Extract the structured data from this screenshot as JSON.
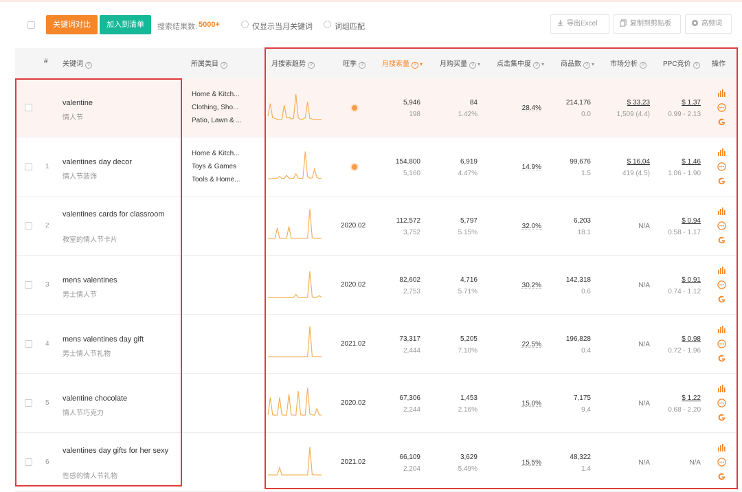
{
  "toolbar": {
    "compare_label": "关键词对比",
    "add_list_label": "加入到清单",
    "result_label": "搜索结果数:",
    "result_count": "5000+",
    "radio_month_label": "仅显示当月关键词",
    "radio_phrase_label": "词组匹配",
    "export_label": "导出Excel",
    "copy_label": "复制到剪贴板",
    "rootword_label": "高频词"
  },
  "headers": {
    "index": "#",
    "keyword": "关键词",
    "category": "所属类目",
    "trend": "月搜索趋势",
    "season": "旺季",
    "monthly_search": "月搜索量",
    "monthly_buy": "月购买量",
    "click_concentration": "点击集中度",
    "goods_count": "商品数",
    "market_analysis": "市场分析",
    "ppc": "PPC竞价",
    "ops": "操作"
  },
  "rows": [
    {
      "index": "",
      "keyword": "valentine",
      "keyword_cn": "情人节",
      "categories": [
        "Home & Kitch...",
        "Clothing, Sho...",
        "Patio, Lawn & ..."
      ],
      "season": "",
      "season_dot": true,
      "search": "5,946",
      "search_sub": "198",
      "buy": "84",
      "buy_sub": "1.42%",
      "click": "28.4%",
      "goods": "214,176",
      "goods_sub": "0.0",
      "market": "$ 33.23",
      "market_sub": "1,509 (4.4)",
      "ppc": "$ 1.37",
      "ppc_sub": "0.99 - 2.13",
      "trend": [
        0.15,
        0.55,
        0.1,
        0.08,
        0.05,
        0.04,
        0.05,
        0.5,
        0.1,
        0.12,
        0.06,
        0.08,
        0.85,
        0.1,
        0.05,
        0.06,
        0.1,
        0.6,
        0.08,
        0.06,
        0.05,
        0.05,
        0.05,
        0.05
      ]
    },
    {
      "index": "1",
      "keyword": "valentines day decor",
      "keyword_cn": "情人节装饰",
      "categories": [
        "Home & Kitch...",
        "Toys & Games",
        "Tools & Home..."
      ],
      "season": "",
      "season_dot": true,
      "search": "154,800",
      "search_sub": "5,160",
      "buy": "6,919",
      "buy_sub": "4.47%",
      "click": "14.9%",
      "goods": "99,676",
      "goods_sub": "1.5",
      "market": "$ 16.04",
      "market_sub": "419 (4.5)",
      "ppc": "$ 1.46",
      "ppc_sub": "1.06 - 1.90",
      "trend": [
        0.04,
        0.04,
        0.05,
        0.05,
        0.06,
        0.12,
        0.05,
        0.05,
        0.15,
        0.06,
        0.05,
        0.05,
        0.2,
        0.06,
        0.05,
        0.05,
        0.9,
        0.1,
        0.06,
        0.06,
        0.35,
        0.08,
        0.05,
        0.05
      ]
    },
    {
      "index": "2",
      "keyword": "valentines cards for classroom",
      "keyword_cn": "教室的情人节卡片",
      "two_line": true,
      "categories": [],
      "season": "2020.02",
      "season_dot": false,
      "search": "112,572",
      "search_sub": "3,752",
      "buy": "5,797",
      "buy_sub": "5.15%",
      "click": "32.0%",
      "goods": "6,203",
      "goods_sub": "18.1",
      "market": "N/A",
      "market_sub": "",
      "ppc": "$ 0.94",
      "ppc_sub": "0.58 - 1.17",
      "trend": [
        0.03,
        0.03,
        0.03,
        0.03,
        0.35,
        0.03,
        0.03,
        0.03,
        0.03,
        0.4,
        0.03,
        0.03,
        0.03,
        0.03,
        0.03,
        0.03,
        0.03,
        0.03,
        0.95,
        0.04,
        0.03,
        0.03,
        0.03,
        0.03
      ]
    },
    {
      "index": "3",
      "keyword": "mens valentines",
      "keyword_cn": "男士情人节",
      "categories": [],
      "season": "2020.02",
      "season_dot": false,
      "search": "82,602",
      "search_sub": "2,753",
      "buy": "4,716",
      "buy_sub": "5.71%",
      "click": "30.2%",
      "goods": "142,318",
      "goods_sub": "0.6",
      "market": "N/A",
      "market_sub": "",
      "ppc": "$ 0.91",
      "ppc_sub": "0.74 - 1.12",
      "trend": [
        0.03,
        0.03,
        0.03,
        0.03,
        0.03,
        0.03,
        0.03,
        0.03,
        0.03,
        0.03,
        0.03,
        0.03,
        0.12,
        0.03,
        0.03,
        0.03,
        0.03,
        0.03,
        0.85,
        0.04,
        0.03,
        0.03,
        0.08,
        0.03
      ]
    },
    {
      "index": "4",
      "keyword": "mens valentines day gift",
      "keyword_cn": "男士情人节礼物",
      "categories": [],
      "season": "2021.02",
      "season_dot": false,
      "search": "73,317",
      "search_sub": "2,444",
      "buy": "5,205",
      "buy_sub": "7.10%",
      "click": "22.5%",
      "goods": "196,828",
      "goods_sub": "0.4",
      "market": "N/A",
      "market_sub": "",
      "ppc": "$ 0.98",
      "ppc_sub": "0.72 - 1.96",
      "trend": [
        0.02,
        0.02,
        0.02,
        0.02,
        0.02,
        0.02,
        0.02,
        0.02,
        0.02,
        0.02,
        0.02,
        0.02,
        0.02,
        0.02,
        0.02,
        0.02,
        0.02,
        0.02,
        0.98,
        0.03,
        0.02,
        0.02,
        0.02,
        0.02
      ]
    },
    {
      "index": "5",
      "keyword": "valentine chocolate",
      "keyword_cn": "情人节巧克力",
      "categories": [],
      "season": "2020.02",
      "season_dot": false,
      "search": "67,306",
      "search_sub": "2,244",
      "buy": "1,453",
      "buy_sub": "2.16%",
      "click": "15.0%",
      "goods": "7,175",
      "goods_sub": "9.4",
      "market": "N/A",
      "market_sub": "",
      "ppc": "$ 1.22",
      "ppc_sub": "0.68 - 2.20",
      "trend": [
        0.05,
        0.6,
        0.05,
        0.04,
        0.04,
        0.6,
        0.05,
        0.04,
        0.04,
        0.7,
        0.05,
        0.04,
        0.04,
        0.8,
        0.05,
        0.04,
        0.04,
        0.9,
        0.08,
        0.05,
        0.04,
        0.25,
        0.05,
        0.04
      ]
    },
    {
      "index": "6",
      "keyword": "valentines day gifts for her sexy",
      "keyword_cn": "性感的情人节礼物",
      "two_line": true,
      "categories": [],
      "season": "2021.02",
      "season_dot": false,
      "search": "66,109",
      "search_sub": "2,204",
      "buy": "3,629",
      "buy_sub": "5.49%",
      "click": "15.5%",
      "goods": "48,322",
      "goods_sub": "1.4",
      "market": "N/A",
      "market_sub": "",
      "ppc": "N/A",
      "ppc_sub": "",
      "trend": [
        0.02,
        0.02,
        0.02,
        0.02,
        0.02,
        0.25,
        0.02,
        0.02,
        0.02,
        0.02,
        0.02,
        0.02,
        0.02,
        0.02,
        0.02,
        0.02,
        0.02,
        0.02,
        0.9,
        0.03,
        0.02,
        0.02,
        0.02,
        0.02
      ]
    }
  ],
  "colors": {
    "accent_orange": "#f5862a",
    "accent_green": "#17b897",
    "frame_red": "#e03c3c",
    "spark": "#f5b056",
    "op_icon": "#f5862a"
  },
  "icons": {
    "export": "download-icon",
    "copy": "copy-icon",
    "rootword": "cloud-icon",
    "op_chart": "bar-chart-icon",
    "op_more": "more-icon",
    "op_google": "google-icon"
  }
}
